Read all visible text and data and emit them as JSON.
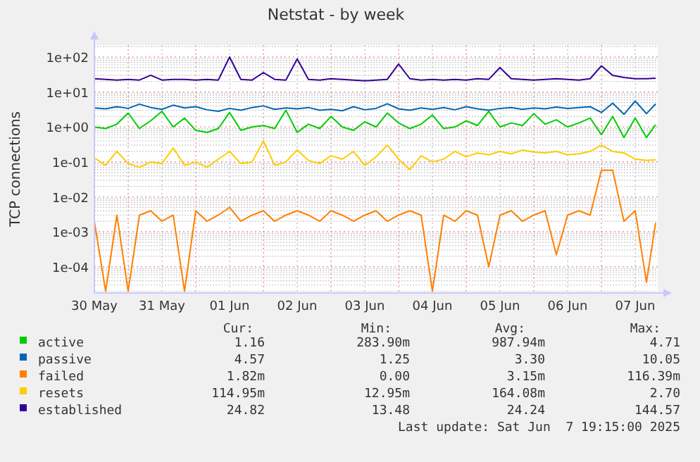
{
  "chart_data": {
    "type": "line",
    "title": "Netstat - by week",
    "ylabel": "TCP connections",
    "x": [
      "2025-05-30T12:00",
      "2025-05-30T16:00",
      "2025-05-30T20:00",
      "2025-05-31T00:00",
      "2025-05-31T04:00",
      "2025-05-31T08:00",
      "2025-05-31T12:00",
      "2025-05-31T16:00",
      "2025-05-31T20:00",
      "2025-06-01T00:00",
      "2025-06-01T04:00",
      "2025-06-01T08:00",
      "2025-06-01T12:00",
      "2025-06-01T16:00",
      "2025-06-01T20:00",
      "2025-06-02T00:00",
      "2025-06-02T04:00",
      "2025-06-02T08:00",
      "2025-06-02T12:00",
      "2025-06-02T16:00",
      "2025-06-02T20:00",
      "2025-06-03T00:00",
      "2025-06-03T04:00",
      "2025-06-03T08:00",
      "2025-06-03T12:00",
      "2025-06-03T16:00",
      "2025-06-03T20:00",
      "2025-06-04T00:00",
      "2025-06-04T04:00",
      "2025-06-04T08:00",
      "2025-06-04T12:00",
      "2025-06-04T16:00",
      "2025-06-04T20:00",
      "2025-06-05T00:00",
      "2025-06-05T04:00",
      "2025-06-05T08:00",
      "2025-06-05T12:00",
      "2025-06-05T16:00",
      "2025-06-05T20:00",
      "2025-06-06T00:00",
      "2025-06-06T04:00",
      "2025-06-06T08:00",
      "2025-06-06T12:00",
      "2025-06-06T16:00",
      "2025-06-06T20:00",
      "2025-06-07T00:00",
      "2025-06-07T04:00",
      "2025-06-07T08:00",
      "2025-06-07T12:00",
      "2025-06-07T16:00",
      "2025-06-07T19:15"
    ],
    "series": [
      {
        "name": "active",
        "color": "#00cc00",
        "values": [
          1.0,
          0.9,
          1.2,
          2.5,
          0.9,
          1.5,
          2.8,
          1.0,
          1.8,
          0.8,
          0.7,
          0.9,
          2.6,
          0.8,
          1.0,
          1.1,
          0.9,
          3.0,
          0.7,
          1.2,
          0.9,
          2.0,
          1.0,
          0.8,
          1.4,
          1.0,
          2.5,
          1.3,
          0.9,
          1.2,
          2.2,
          0.9,
          1.0,
          1.5,
          1.1,
          2.8,
          1.0,
          1.3,
          1.1,
          2.4,
          1.2,
          1.6,
          1.0,
          1.3,
          1.8,
          0.6,
          2.0,
          0.5,
          1.8,
          0.5,
          1.16
        ]
      },
      {
        "name": "passive",
        "color": "#0066b3",
        "values": [
          3.5,
          3.3,
          3.8,
          3.4,
          4.5,
          3.6,
          3.2,
          4.2,
          3.5,
          3.8,
          3.1,
          2.8,
          3.4,
          3.0,
          3.6,
          4.0,
          3.2,
          3.5,
          3.3,
          3.6,
          3.0,
          3.2,
          2.9,
          3.8,
          3.1,
          3.4,
          4.6,
          3.3,
          3.0,
          3.5,
          3.2,
          3.6,
          3.1,
          3.8,
          3.3,
          3.0,
          3.4,
          3.6,
          3.2,
          3.5,
          3.3,
          3.7,
          3.4,
          3.6,
          3.8,
          2.6,
          4.8,
          2.3,
          5.5,
          2.4,
          4.57
        ]
      },
      {
        "name": "failed",
        "color": "#ff8000",
        "values": [
          0.002,
          2e-05,
          0.003,
          2e-05,
          0.003,
          0.004,
          0.002,
          0.003,
          2e-05,
          0.004,
          0.002,
          0.003,
          0.005,
          0.002,
          0.003,
          0.004,
          0.002,
          0.003,
          0.004,
          0.003,
          0.002,
          0.004,
          0.003,
          0.002,
          0.003,
          0.004,
          0.002,
          0.003,
          0.004,
          0.003,
          2e-05,
          0.003,
          0.002,
          0.004,
          0.003,
          0.0001,
          0.003,
          0.004,
          0.002,
          0.003,
          0.004,
          0.00022,
          0.003,
          0.004,
          0.003,
          0.058,
          0.058,
          0.002,
          0.004,
          3.6e-05,
          0.00182
        ]
      },
      {
        "name": "resets",
        "color": "#ffcc00",
        "values": [
          0.13,
          0.08,
          0.2,
          0.09,
          0.07,
          0.1,
          0.09,
          0.25,
          0.08,
          0.1,
          0.07,
          0.12,
          0.2,
          0.09,
          0.1,
          0.4,
          0.08,
          0.1,
          0.22,
          0.11,
          0.09,
          0.15,
          0.12,
          0.2,
          0.08,
          0.14,
          0.3,
          0.12,
          0.06,
          0.15,
          0.1,
          0.12,
          0.2,
          0.14,
          0.18,
          0.16,
          0.2,
          0.17,
          0.22,
          0.19,
          0.18,
          0.2,
          0.16,
          0.17,
          0.2,
          0.3,
          0.2,
          0.18,
          0.12,
          0.11,
          0.115
        ]
      },
      {
        "name": "established",
        "color": "#330099",
        "values": [
          24,
          23,
          22,
          23,
          22,
          30,
          22,
          23,
          23,
          22,
          23,
          22,
          100,
          23,
          22,
          36,
          23,
          22,
          88,
          23,
          22,
          24,
          23,
          22,
          21,
          22,
          23,
          63,
          24,
          22,
          23,
          22,
          23,
          22,
          24,
          23,
          50,
          24,
          23,
          22,
          23,
          24,
          23,
          22,
          24,
          56,
          30,
          26,
          24,
          24,
          24.82
        ]
      }
    ],
    "log": "y",
    "ylim": [
      1.78e-05,
      220
    ],
    "yticks": [
      {
        "value": 0.0001,
        "label": "1e-04"
      },
      {
        "value": 0.001,
        "label": "1e-03"
      },
      {
        "value": 0.01,
        "label": "1e-02"
      },
      {
        "value": 0.1,
        "label": "1e-01"
      },
      {
        "value": 1,
        "label": "1e+00"
      },
      {
        "value": 10,
        "label": "1e+01"
      },
      {
        "value": 100,
        "label": "1e+02"
      }
    ],
    "xlim": [
      "2025-05-30T12:00",
      "2025-06-07T20:00"
    ],
    "xticks": [
      {
        "value": "2025-05-30T12:00",
        "label": "30 May"
      },
      {
        "value": "2025-05-31T00:00",
        "label": null
      },
      {
        "value": "2025-05-31T12:00",
        "label": "31 May"
      },
      {
        "value": "2025-06-01T00:00",
        "label": null
      },
      {
        "value": "2025-06-01T12:00",
        "label": "01 Jun"
      },
      {
        "value": "2025-06-02T00:00",
        "label": null
      },
      {
        "value": "2025-06-02T12:00",
        "label": "02 Jun"
      },
      {
        "value": "2025-06-03T00:00",
        "label": null
      },
      {
        "value": "2025-06-03T12:00",
        "label": "03 Jun"
      },
      {
        "value": "2025-06-04T00:00",
        "label": null
      },
      {
        "value": "2025-06-04T12:00",
        "label": "04 Jun"
      },
      {
        "value": "2025-06-05T00:00",
        "label": null
      },
      {
        "value": "2025-06-05T12:00",
        "label": "05 Jun"
      },
      {
        "value": "2025-06-06T00:00",
        "label": null
      },
      {
        "value": "2025-06-06T12:00",
        "label": "06 Jun"
      },
      {
        "value": "2025-06-07T00:00",
        "label": null
      },
      {
        "value": "2025-06-07T12:00",
        "label": "07 Jun"
      }
    ],
    "grid": true,
    "legend": "bottom",
    "marker": "none",
    "line_style": "solid",
    "annotations": [
      "Cur:",
      "Min:",
      "Avg:",
      "Max:",
      "1.16",
      "283.90m",
      "987.94m",
      "4.71",
      "4.57",
      "1.25",
      "3.30",
      "10.05",
      "1.82m",
      "0.00",
      "3.15m",
      "116.39m",
      "114.95m",
      "12.95m",
      "164.08m",
      "2.70",
      "24.82",
      "13.48",
      "24.24",
      "144.57",
      "Last update: Sat Jun  7 19:15:00 2025"
    ]
  }
}
